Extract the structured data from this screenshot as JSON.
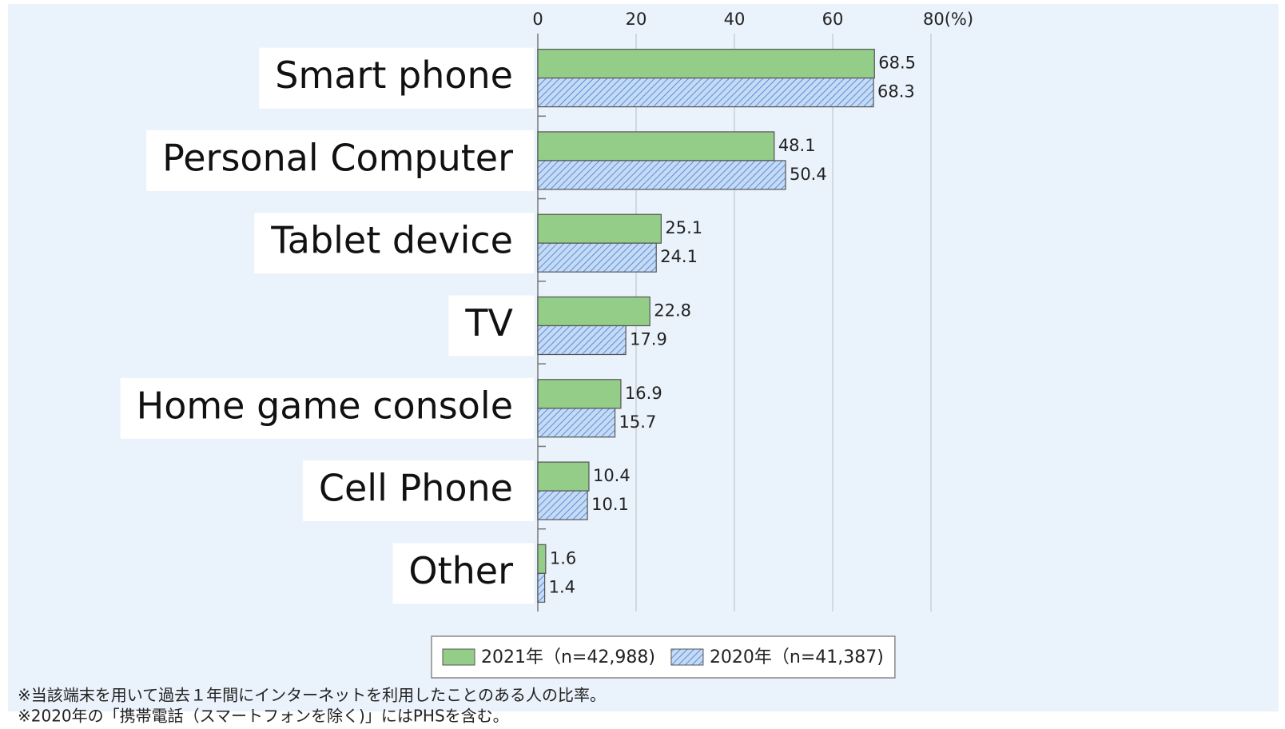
{
  "chart_data": {
    "type": "bar",
    "orientation": "horizontal",
    "categories": [
      "Smart phone",
      "Personal Computer",
      "Tablet device",
      "TV",
      "Home game console",
      "Cell Phone",
      "Other"
    ],
    "series": [
      {
        "name": "2021年（n=42,988)",
        "color": "#93cd87",
        "values": [
          68.5,
          48.1,
          25.1,
          22.8,
          16.9,
          10.4,
          1.6
        ]
      },
      {
        "name": "2020年（n=41,387)",
        "color": "#c5daf5",
        "hatch": true,
        "values": [
          68.3,
          50.4,
          24.1,
          17.9,
          15.7,
          10.1,
          1.4
        ]
      }
    ],
    "xlim": [
      0,
      80
    ],
    "xticks": [
      0,
      20,
      40,
      60,
      {
        "value": 80,
        "label": "80(%)"
      }
    ],
    "grid": true,
    "legend": "bottom",
    "notes": [
      "※当該端末を用いて過去１年間にインターネットを利用したことのある人の比率。",
      "※2020年の「携帯電話（スマートフォンを除く)」にはPHSを含む。"
    ]
  }
}
